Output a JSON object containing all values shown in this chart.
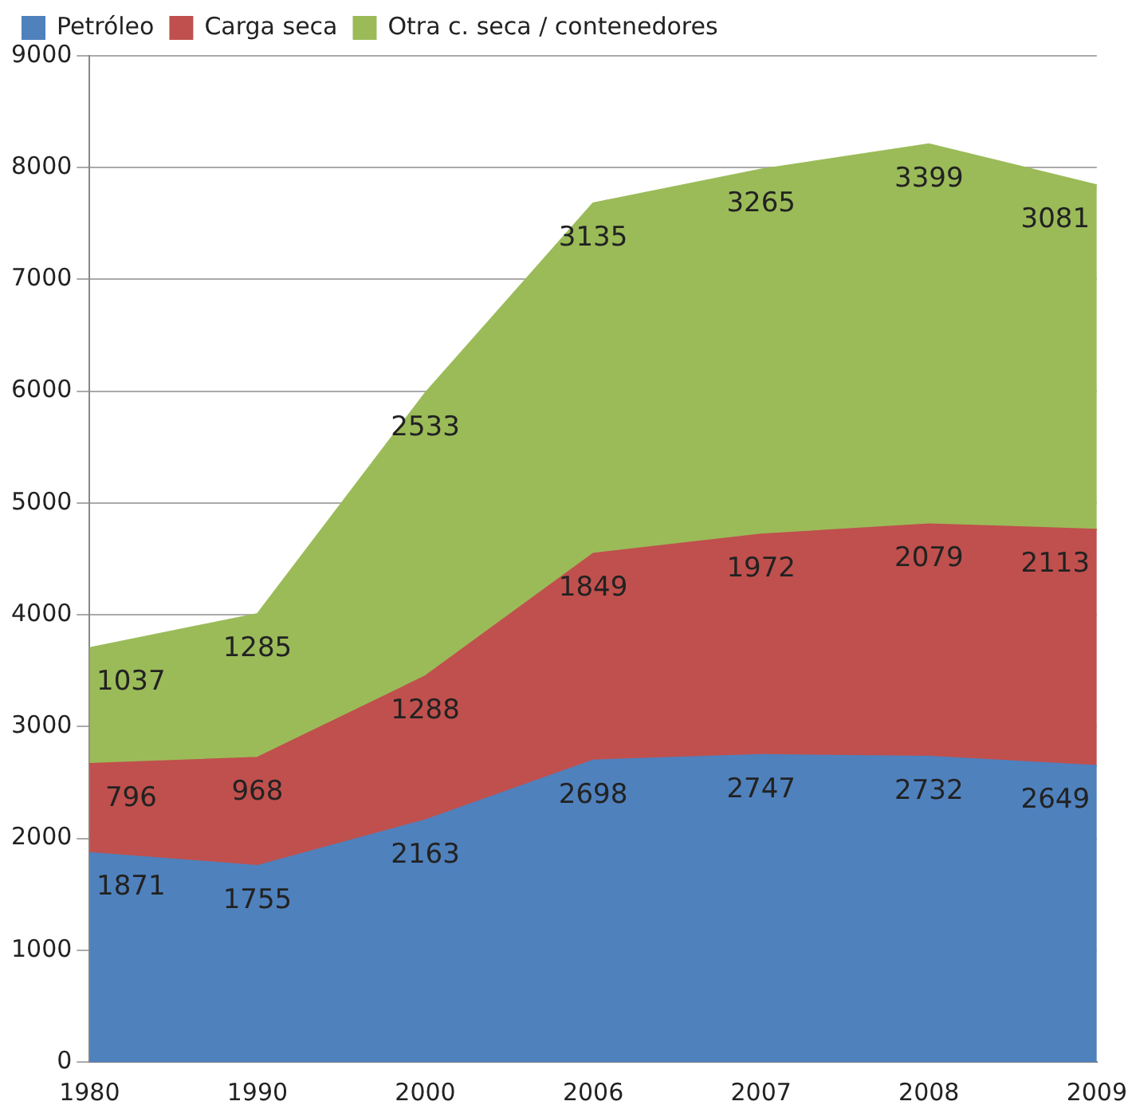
{
  "chart_data": {
    "type": "area",
    "stacked": true,
    "categories": [
      "1980",
      "1990",
      "2000",
      "2006",
      "2007",
      "2008",
      "2009"
    ],
    "series": [
      {
        "name": "Petróleo",
        "color": "#4f81bd",
        "values": [
          1871,
          1755,
          2163,
          2698,
          2747,
          2732,
          2649
        ]
      },
      {
        "name": "Carga seca",
        "color": "#c0504d",
        "values": [
          796,
          968,
          1288,
          1849,
          1972,
          2079,
          2113
        ]
      },
      {
        "name": "Otra c. seca / contenedores",
        "color": "#9bbb59",
        "values": [
          1037,
          1285,
          2533,
          3135,
          3265,
          3399,
          3081
        ]
      }
    ],
    "ylim": [
      0,
      9000
    ],
    "yticks": [
      0,
      1000,
      2000,
      3000,
      4000,
      5000,
      6000,
      7000,
      8000,
      9000
    ],
    "grid": "y",
    "legend": "top",
    "data_labels": true
  }
}
